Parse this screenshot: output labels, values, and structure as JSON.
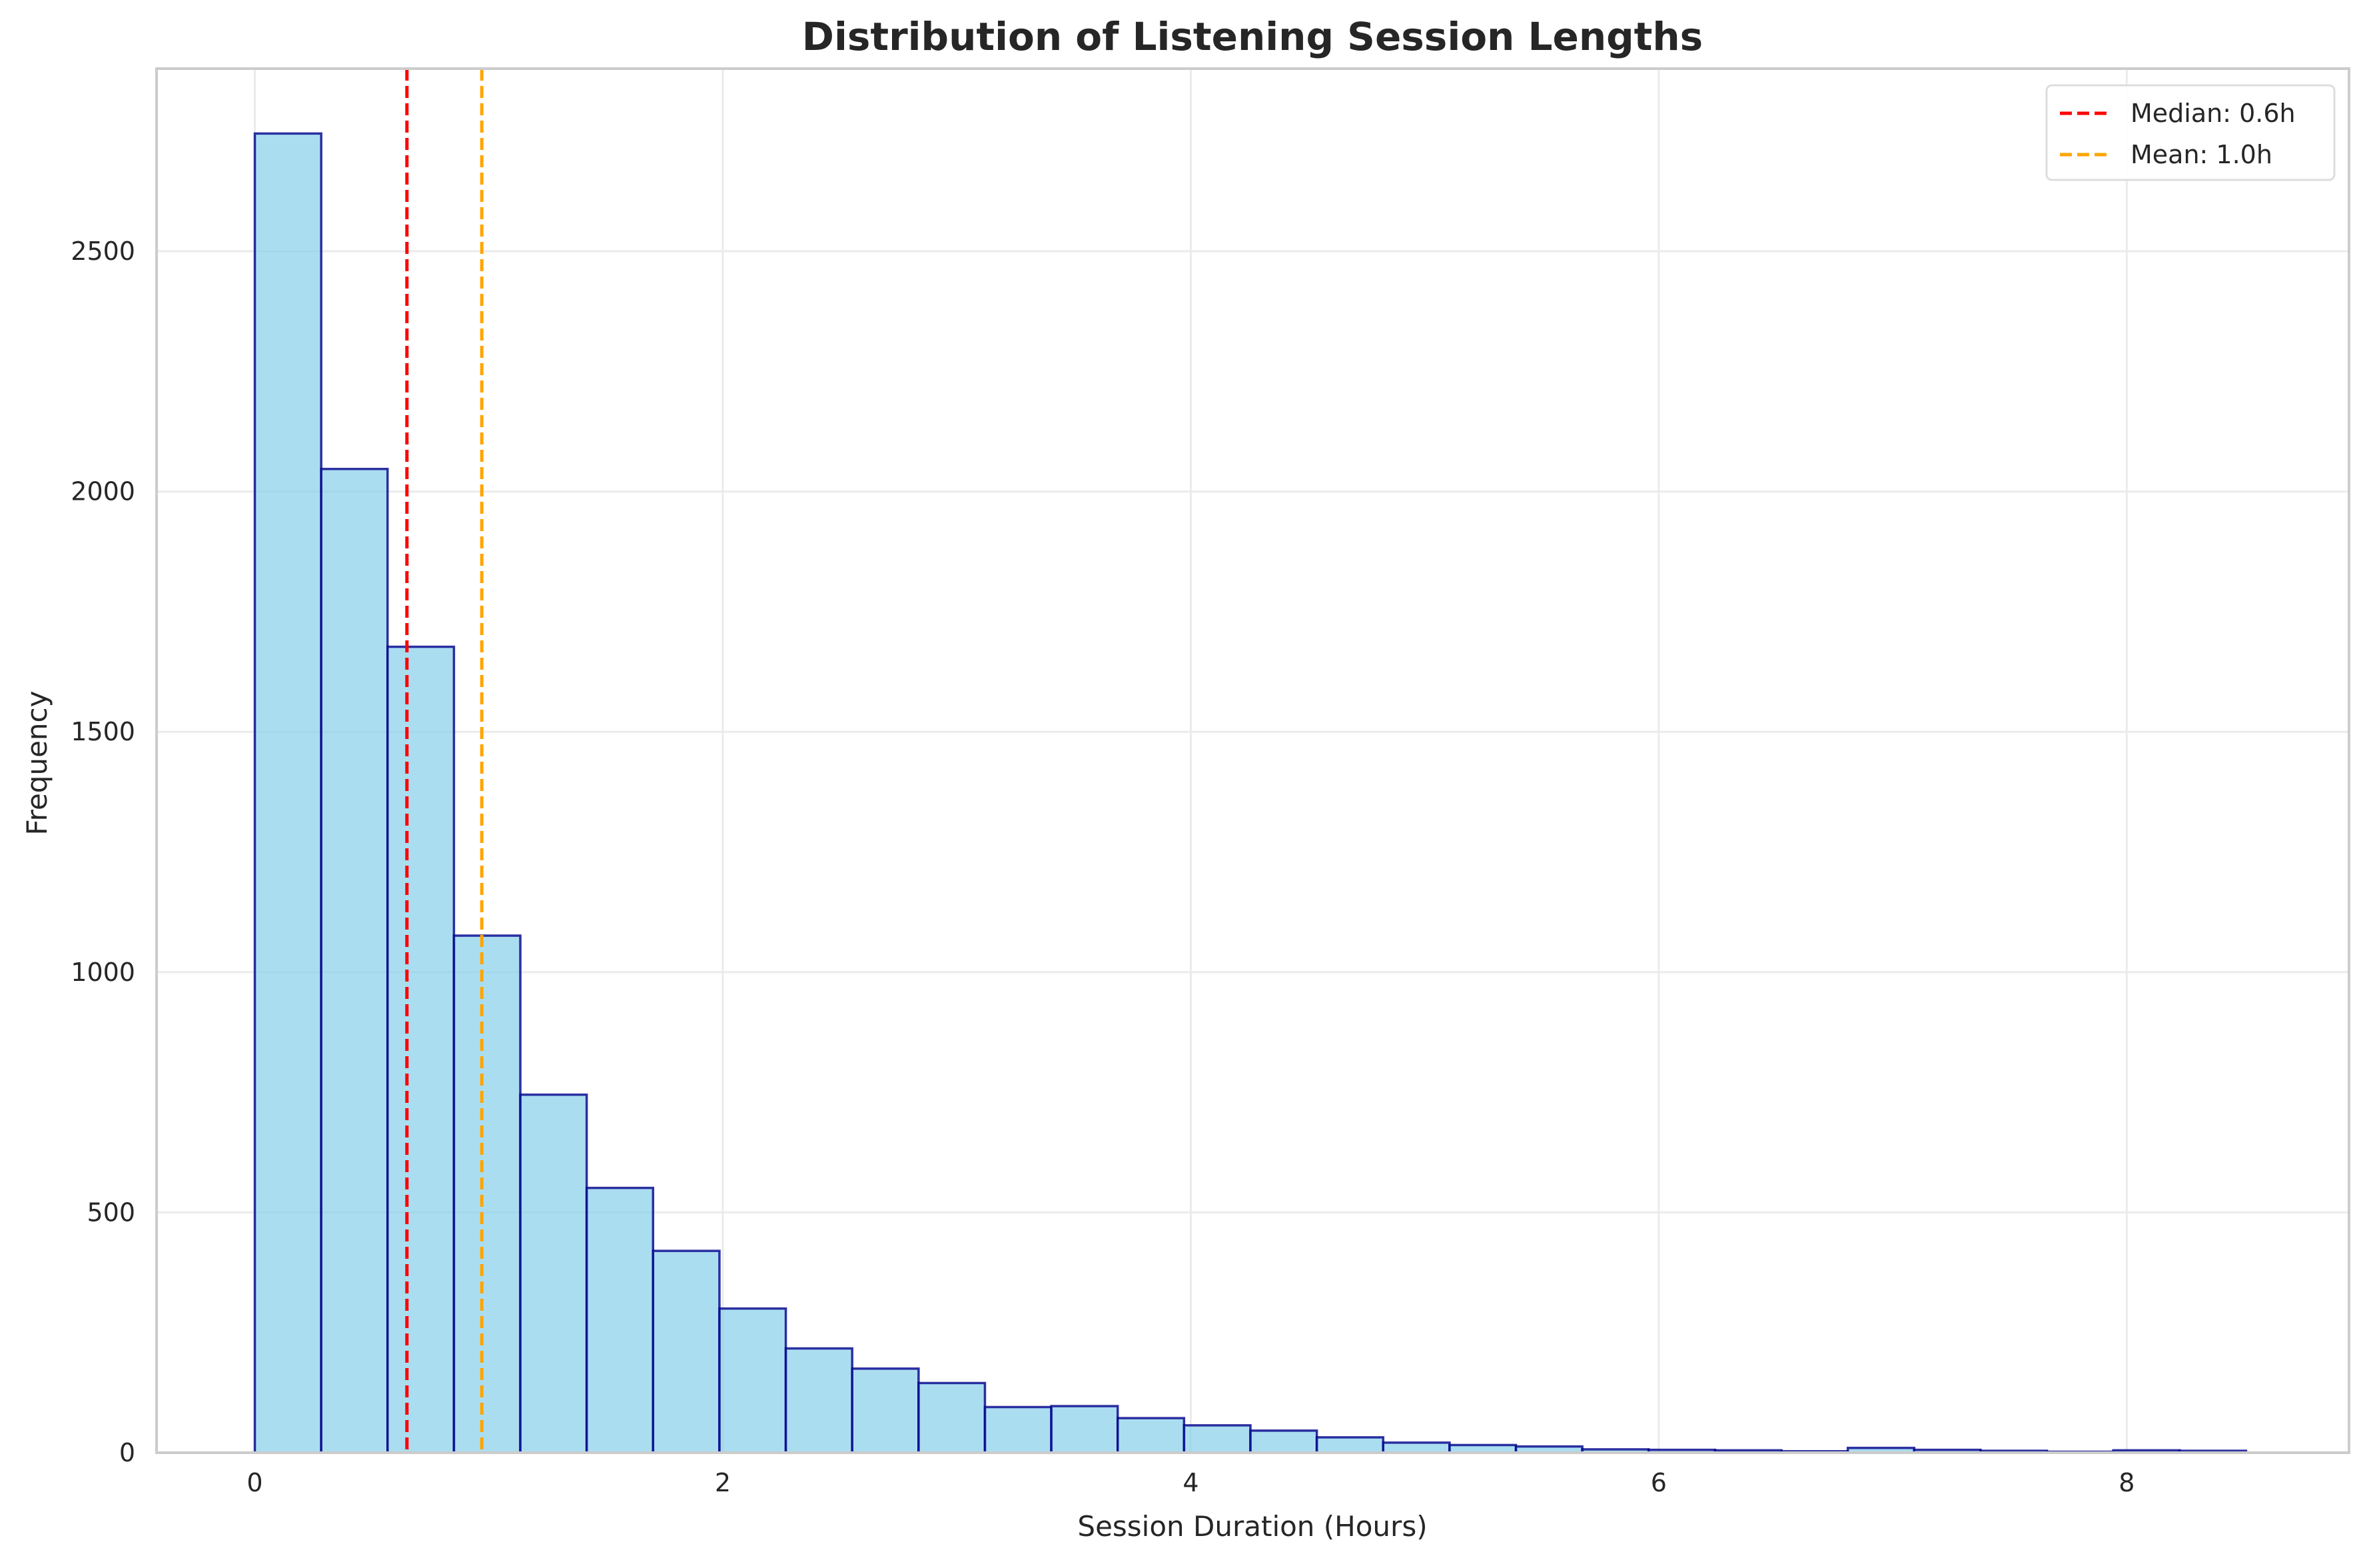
{
  "chart_data": {
    "type": "bar",
    "title": "Distribution of Listening Session Lengths",
    "xlabel": "Session Duration (Hours)",
    "ylabel": "Frequency",
    "xlim": [
      -0.42,
      8.95
    ],
    "ylim": [
      0,
      2880
    ],
    "xticks": [
      0,
      2,
      4,
      6,
      8
    ],
    "yticks": [
      0,
      500,
      1000,
      1500,
      2000,
      2500
    ],
    "bin_edges": [
      0.0,
      0.2837,
      0.5673,
      0.851,
      1.1347,
      1.4183,
      1.702,
      1.9857,
      2.2693,
      2.553,
      2.8367,
      3.1203,
      3.404,
      3.6877,
      3.9713,
      4.255,
      4.5387,
      4.8223,
      5.106,
      5.3897,
      5.6733,
      5.957,
      6.2407,
      6.5243,
      6.808,
      7.0917,
      7.3753,
      7.659,
      7.9427,
      8.2263,
      8.51
    ],
    "values": [
      2745,
      2047,
      1677,
      1076,
      745,
      551,
      420,
      300,
      217,
      175,
      145,
      95,
      97,
      72,
      57,
      46,
      32,
      21,
      16,
      13,
      7,
      6,
      5,
      3,
      10,
      6,
      4,
      2,
      5,
      4
    ],
    "grid": true,
    "legend_position": "top-right",
    "reference_lines": [
      {
        "label": "Median: 0.6h",
        "x": 0.65,
        "color": "#ff0000"
      },
      {
        "label": "Mean: 1.0h",
        "x": 0.97,
        "color": "#ffa500"
      }
    ],
    "colors": {
      "bar_fill": "#87CEEB",
      "bar_edge": "#00008B"
    }
  }
}
